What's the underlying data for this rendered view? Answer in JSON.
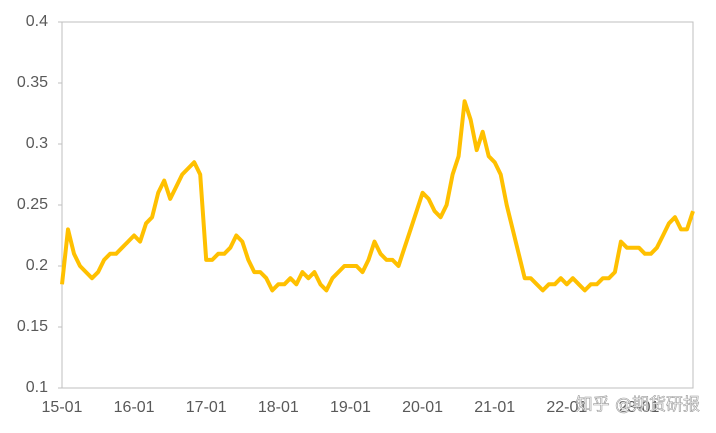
{
  "chart_data": {
    "type": "line",
    "categories": [
      "15-01",
      null,
      null,
      null,
      null,
      null,
      null,
      null,
      null,
      null,
      null,
      null,
      "16-01",
      null,
      null,
      null,
      null,
      null,
      null,
      null,
      null,
      null,
      null,
      null,
      "17-01",
      null,
      null,
      null,
      null,
      null,
      null,
      null,
      null,
      null,
      null,
      null,
      "18-01",
      null,
      null,
      null,
      null,
      null,
      null,
      null,
      null,
      null,
      null,
      null,
      "19-01",
      null,
      null,
      null,
      null,
      null,
      null,
      null,
      null,
      null,
      null,
      null,
      "20-01",
      null,
      null,
      null,
      null,
      null,
      null,
      null,
      null,
      null,
      null,
      null,
      "21-01",
      null,
      null,
      null,
      null,
      null,
      null,
      null,
      null,
      null,
      null,
      null,
      "22-01",
      null,
      null,
      null,
      null,
      null,
      null,
      null,
      null,
      null,
      null,
      null,
      "23-01",
      null,
      null,
      null,
      null,
      null,
      null,
      null,
      null,
      null
    ],
    "series": [
      {
        "color": "#FFC000",
        "values": [
          0.185,
          0.23,
          0.21,
          0.2,
          0.195,
          0.19,
          0.195,
          0.205,
          0.21,
          0.21,
          0.215,
          0.22,
          0.225,
          0.22,
          0.235,
          0.24,
          0.26,
          0.27,
          0.255,
          0.265,
          0.275,
          0.28,
          0.285,
          0.275,
          0.205,
          0.205,
          0.21,
          0.21,
          0.215,
          0.225,
          0.22,
          0.205,
          0.195,
          0.195,
          0.19,
          0.18,
          0.185,
          0.185,
          0.19,
          0.185,
          0.195,
          0.19,
          0.195,
          0.185,
          0.18,
          0.19,
          0.195,
          0.2,
          0.2,
          0.2,
          0.195,
          0.205,
          0.22,
          0.21,
          0.205,
          0.205,
          0.2,
          0.215,
          0.23,
          0.245,
          0.26,
          0.255,
          0.245,
          0.24,
          0.25,
          0.275,
          0.29,
          0.335,
          0.32,
          0.295,
          0.31,
          0.29,
          0.285,
          0.275,
          0.25,
          0.23,
          0.21,
          0.19,
          0.19,
          0.185,
          0.18,
          0.185,
          0.185,
          0.19,
          0.185,
          0.19,
          0.185,
          0.18,
          0.185,
          0.185,
          0.19,
          0.19,
          0.195,
          0.22,
          0.215,
          0.215,
          0.215,
          0.21,
          0.21,
          0.215,
          0.225,
          0.235,
          0.24,
          0.23,
          0.23,
          0.245
        ]
      }
    ],
    "ylim": [
      0.1,
      0.4
    ],
    "yticks": [
      0.1,
      0.15,
      0.2,
      0.25,
      0.3,
      0.35,
      0.4
    ],
    "watermark": "知乎 @期货研报"
  }
}
